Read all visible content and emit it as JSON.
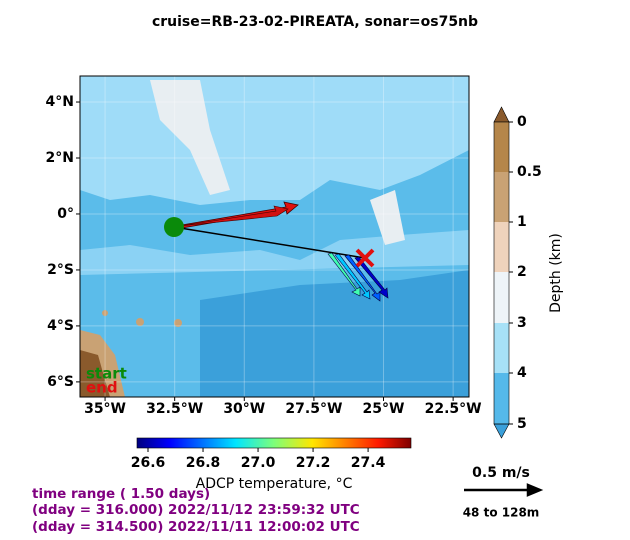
{
  "title": "cruise=RB-23-02-PIREATA,   sonar=os75nb",
  "map": {
    "xlim": [
      -35.9,
      -21.93
    ],
    "ylim": [
      -6.54,
      4.93
    ],
    "xticks": [
      {
        "value": -35,
        "label": "35°W"
      },
      {
        "value": -32.5,
        "label": "32.5°W"
      },
      {
        "value": -30,
        "label": "30°W"
      },
      {
        "value": -27.5,
        "label": "27.5°W"
      },
      {
        "value": -25,
        "label": "25°W"
      },
      {
        "value": -22.5,
        "label": "22.5°W"
      }
    ],
    "yticks": [
      {
        "value": 4,
        "label": "4°N"
      },
      {
        "value": 2,
        "label": "2°N"
      },
      {
        "value": 0,
        "label": "0°"
      },
      {
        "value": -2,
        "label": "2°S"
      },
      {
        "value": -4,
        "label": "4°S"
      },
      {
        "value": -6,
        "label": "6°S"
      }
    ],
    "start_label": "start",
    "end_label": "end"
  },
  "depth_colorbar": {
    "label": "Depth (km)",
    "ticks": [
      "0",
      "0.5",
      "1",
      "2",
      "3",
      "4",
      "5"
    ]
  },
  "temperature_colorbar": {
    "label": "ADCP temperature, °C",
    "lim": [
      26.56,
      27.556
    ],
    "ticks": [
      26.6,
      26.8,
      27.0,
      27.2,
      27.4
    ],
    "tick_labels": [
      "26.6",
      "26.8",
      "27.0",
      "27.2",
      "27.4"
    ]
  },
  "scale": {
    "speed": "0.5 m/s",
    "depth_range": "48 to 128m"
  },
  "time_info": [
    "time range ( 1.50 days)",
    "(dday = 316.000) 2022/11/12 23:59:32 UTC",
    "(dday = 314.500) 2022/11/11 12:00:02 UTC"
  ]
}
